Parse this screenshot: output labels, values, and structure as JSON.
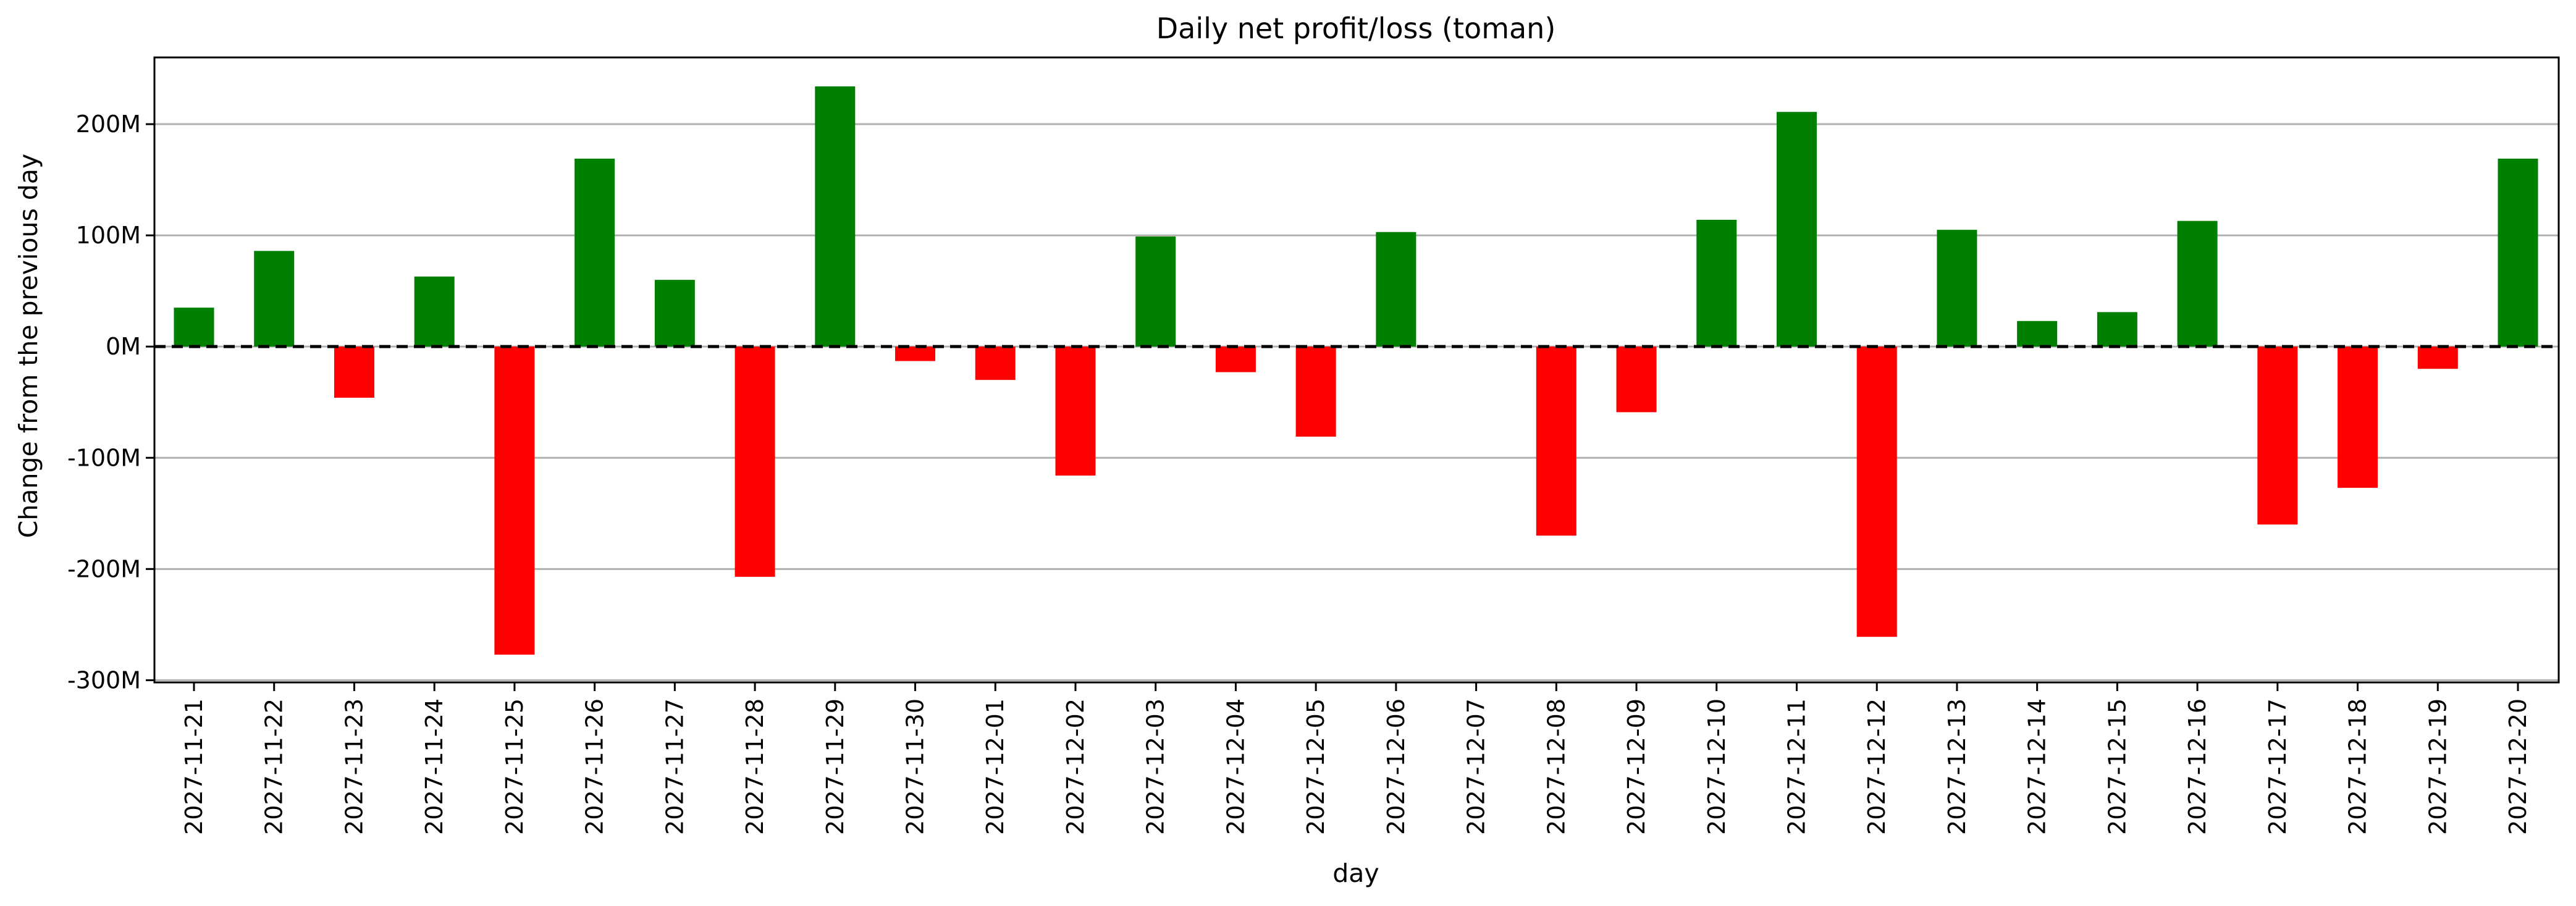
{
  "chart_data": {
    "type": "bar",
    "title": "Daily net profit/loss (toman)",
    "xlabel": "day",
    "ylabel": "Change from the previous day",
    "ylim": [
      -302000000,
      260000000
    ],
    "yticks": [
      -300000000,
      -200000000,
      -100000000,
      0,
      100000000,
      200000000
    ],
    "ytick_labels": [
      "-300M",
      "-200M",
      "-100M",
      "0M",
      "100M",
      "200M"
    ],
    "grid": "horizontal",
    "zero_line": "dashed black",
    "colors": {
      "positive": "#008000",
      "negative": "#ff0000"
    },
    "categories": [
      "2027-11-21",
      "2027-11-22",
      "2027-11-23",
      "2027-11-24",
      "2027-11-25",
      "2027-11-26",
      "2027-11-27",
      "2027-11-28",
      "2027-11-29",
      "2027-11-30",
      "2027-12-01",
      "2027-12-02",
      "2027-12-03",
      "2027-12-04",
      "2027-12-05",
      "2027-12-06",
      "2027-12-07",
      "2027-12-08",
      "2027-12-09",
      "2027-12-10",
      "2027-12-11",
      "2027-12-12",
      "2027-12-13",
      "2027-12-14",
      "2027-12-15",
      "2027-12-16",
      "2027-12-17",
      "2027-12-18",
      "2027-12-19",
      "2027-12-20"
    ],
    "values": [
      35000000,
      86000000,
      -46000000,
      63000000,
      -277000000,
      169000000,
      60000000,
      -207000000,
      234000000,
      -13000000,
      -30000000,
      -116000000,
      99000000,
      -23000000,
      -81000000,
      103000000,
      0,
      -170000000,
      -59000000,
      114000000,
      211000000,
      -261000000,
      105000000,
      23000000,
      31000000,
      113000000,
      -160000000,
      -127000000,
      -20000000,
      169000000
    ]
  }
}
